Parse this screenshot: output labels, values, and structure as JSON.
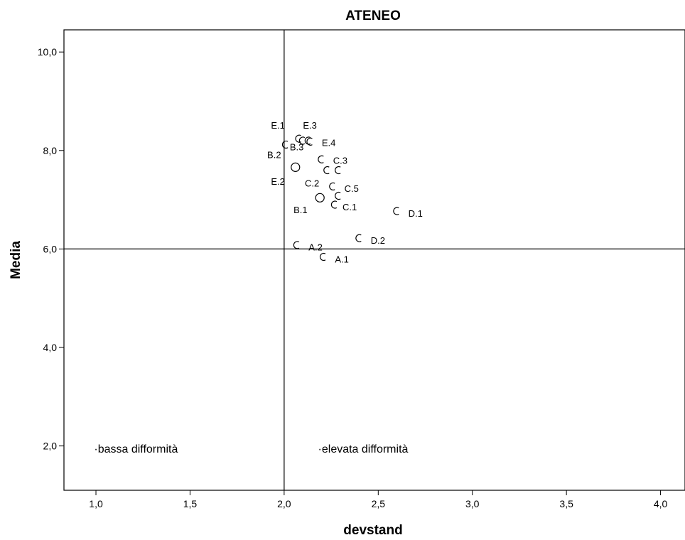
{
  "chart_data": {
    "type": "scatter",
    "title": "ATENEO",
    "xlabel": "devstand",
    "ylabel": "Media",
    "xlim": [
      0.83,
      4.13
    ],
    "ylim": [
      1.1,
      10.45
    ],
    "x_ticks": [
      {
        "value": 1.0,
        "label": "1,0"
      },
      {
        "value": 1.5,
        "label": "1,5"
      },
      {
        "value": 2.0,
        "label": "2,0"
      },
      {
        "value": 2.5,
        "label": "2,5"
      },
      {
        "value": 3.0,
        "label": "3,0"
      },
      {
        "value": 3.5,
        "label": "3,5"
      },
      {
        "value": 4.0,
        "label": "4,0"
      }
    ],
    "y_ticks": [
      {
        "value": 2.0,
        "label": "2,0"
      },
      {
        "value": 4.0,
        "label": "4,0"
      },
      {
        "value": 6.0,
        "label": "6,0"
      },
      {
        "value": 8.0,
        "label": "8,0"
      },
      {
        "value": 10.0,
        "label": "10,0"
      }
    ],
    "reference_lines": {
      "x": 2.0,
      "y": 6.0
    },
    "points": [
      {
        "x": 2.01,
        "y": 8.12,
        "label": "B.2",
        "lx": 1.91,
        "ly": 7.92,
        "shape": "arc"
      },
      {
        "x": 2.08,
        "y": 8.24,
        "label": "E.1",
        "lx": 1.93,
        "ly": 8.52,
        "shape": "arc"
      },
      {
        "x": 2.1,
        "y": 8.2,
        "label": "E.3",
        "lx": 2.1,
        "ly": 8.52,
        "shape": "arc"
      },
      {
        "x": 2.14,
        "y": 8.18,
        "label": "B.3",
        "lx": 2.03,
        "ly": 8.08,
        "shape": "arc"
      },
      {
        "x": 2.13,
        "y": 8.2,
        "label": "E.4",
        "lx": 2.2,
        "ly": 8.16,
        "shape": "arc"
      },
      {
        "x": 2.06,
        "y": 7.66,
        "label": "E.2",
        "lx": 1.93,
        "ly": 7.38,
        "shape": "circle"
      },
      {
        "x": 2.2,
        "y": 7.82,
        "label": "C.3",
        "lx": 2.26,
        "ly": 7.8,
        "shape": "arc"
      },
      {
        "x": 2.23,
        "y": 7.6,
        "label": "C.2",
        "lx": 2.11,
        "ly": 7.34,
        "shape": "arc"
      },
      {
        "x": 2.29,
        "y": 7.6,
        "label": "",
        "lx": 0,
        "ly": 0,
        "shape": "arc"
      },
      {
        "x": 2.26,
        "y": 7.27,
        "label": "C.5",
        "lx": 2.32,
        "ly": 7.23,
        "shape": "arc"
      },
      {
        "x": 2.29,
        "y": 7.08,
        "label": "",
        "lx": 0,
        "ly": 0,
        "shape": "arc"
      },
      {
        "x": 2.19,
        "y": 7.04,
        "label": "B.1",
        "lx": 2.05,
        "ly": 6.8,
        "shape": "circle"
      },
      {
        "x": 2.27,
        "y": 6.9,
        "label": "C.1",
        "lx": 2.31,
        "ly": 6.86,
        "shape": "arc"
      },
      {
        "x": 2.6,
        "y": 6.77,
        "label": "D.1",
        "lx": 2.66,
        "ly": 6.73,
        "shape": "arc"
      },
      {
        "x": 2.4,
        "y": 6.22,
        "label": "D.2",
        "lx": 2.46,
        "ly": 6.18,
        "shape": "arc"
      },
      {
        "x": 2.07,
        "y": 6.08,
        "label": "A.2",
        "lx": 2.13,
        "ly": 6.04,
        "shape": "arc"
      },
      {
        "x": 2.21,
        "y": 5.84,
        "label": "A.1",
        "lx": 2.27,
        "ly": 5.8,
        "shape": "arc"
      }
    ],
    "annotations": [
      {
        "text": "·bassa difformità",
        "x": 0.99,
        "y": 1.95
      },
      {
        "text": "·elevata difformità",
        "x": 2.18,
        "y": 1.95
      }
    ]
  }
}
